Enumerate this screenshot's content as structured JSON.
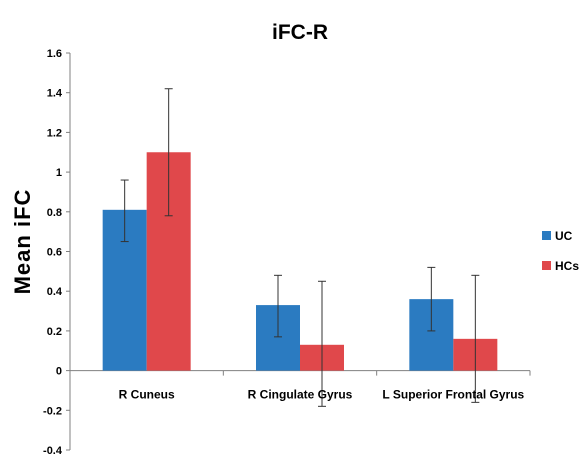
{
  "chart_data": {
    "type": "bar",
    "title": "iFC-R",
    "xlabel": "",
    "ylabel": "Mean iFC",
    "categories": [
      "R Cuneus",
      "R Cingulate Gyrus",
      "L Superior Frontal Gyrus"
    ],
    "series": [
      {
        "name": "UC",
        "color": "#2B7BC1",
        "values": [
          0.81,
          0.33,
          0.36
        ],
        "err_low": [
          0.65,
          0.17,
          0.2
        ],
        "err_high": [
          0.96,
          0.48,
          0.52
        ]
      },
      {
        "name": "HCs",
        "color": "#E0484B",
        "values": [
          1.1,
          0.13,
          0.16
        ],
        "err_low": [
          0.78,
          -0.18,
          -0.16
        ],
        "err_high": [
          1.42,
          0.45,
          0.48
        ]
      }
    ],
    "ylim": [
      -0.4,
      1.6
    ],
    "yticks": [
      "-0.4",
      "-0.2",
      "0",
      "0.2",
      "0.4",
      "0.6",
      "0.8",
      "1",
      "1.2",
      "1.4",
      "1.6"
    ],
    "grid": false,
    "legend_position": "right"
  }
}
